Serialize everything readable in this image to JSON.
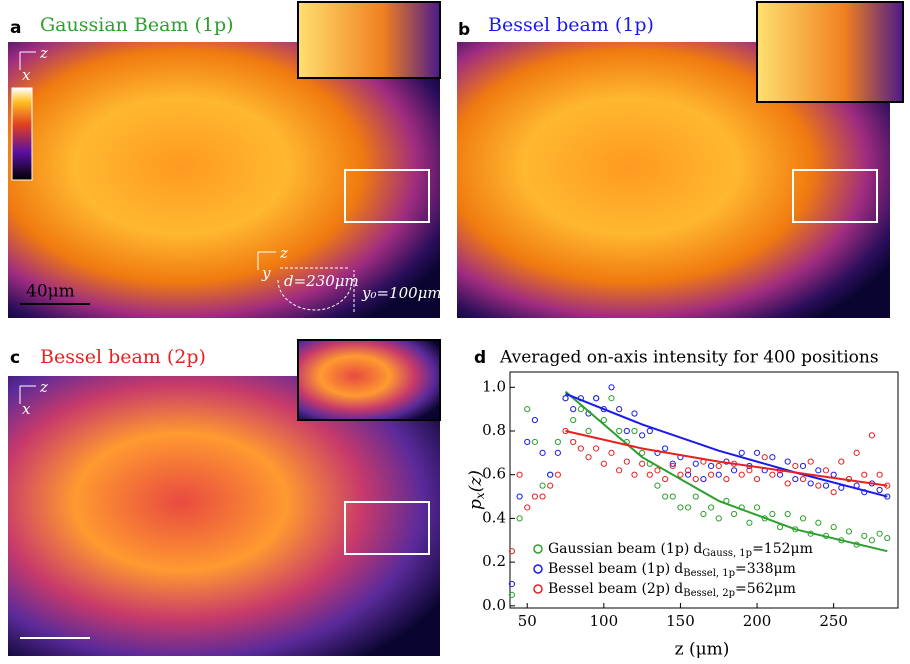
{
  "panels": [
    {
      "letter": "a",
      "title": "Gaussian Beam (1p)",
      "color": "#2ca02c",
      "annotations": [
        "z",
        "x",
        "40μm",
        "z",
        "y",
        "d=230μm",
        "y₀=100μm"
      ]
    },
    {
      "letter": "b",
      "title": "Bessel beam (1p)",
      "color": "#1a1aee"
    },
    {
      "letter": "c",
      "title": "Bessel beam (2p)",
      "color": "#e82020",
      "annotations": [
        "z",
        "x"
      ]
    }
  ],
  "chart_data": {
    "type": "scatter",
    "panel_label": "d",
    "title": "Averaged on-axis intensity for 400 positions",
    "xlabel": "z (μm)",
    "ylabel": {
      "base": "p",
      "sub": "x",
      "tail": "(z)"
    },
    "xlim": [
      38.75,
      292
    ],
    "xticks": [
      50,
      100,
      150,
      200,
      250
    ],
    "ylim": [
      -0.01,
      1.07
    ],
    "yticks": [
      {
        "value": 0,
        "label": "0.0"
      },
      0.2,
      0.4,
      0.6,
      0.8,
      {
        "value": 1,
        "label": "1.0"
      }
    ],
    "x": [
      40,
      45,
      50,
      55,
      60,
      65,
      70,
      75,
      80,
      85,
      90,
      95,
      100,
      105,
      110,
      115,
      120,
      125,
      130,
      135,
      140,
      145,
      150,
      155,
      160,
      165,
      170,
      175,
      180,
      185,
      190,
      195,
      200,
      205,
      210,
      215,
      220,
      225,
      230,
      235,
      240,
      245,
      250,
      255,
      260,
      265,
      270,
      275,
      280,
      285
    ],
    "series": [
      {
        "name": "Gaussian beam (1p)",
        "color": "#2ca02c",
        "fit_label": {
          "base": "d",
          "sub": "Gauss, 1p",
          "value": "=152μm"
        },
        "values": [
          0.05,
          0.4,
          0.9,
          0.75,
          0.55,
          0.6,
          0.75,
          0.95,
          0.85,
          0.9,
          0.8,
          0.95,
          0.85,
          0.95,
          0.8,
          0.75,
          0.8,
          0.7,
          0.65,
          0.55,
          0.5,
          0.5,
          0.45,
          0.45,
          0.5,
          0.42,
          0.45,
          0.4,
          0.48,
          0.42,
          0.45,
          0.38,
          0.45,
          0.4,
          0.42,
          0.36,
          0.42,
          0.35,
          0.4,
          0.33,
          0.38,
          0.32,
          0.36,
          0.3,
          0.34,
          0.28,
          0.32,
          0.3,
          0.33,
          0.31
        ],
        "fit": {
          "x": [
            75,
            125,
            175,
            225,
            285
          ],
          "values": [
            0.98,
            0.68,
            0.48,
            0.35,
            0.25
          ]
        }
      },
      {
        "name": "Bessel beam (1p)",
        "color": "#1a1aee",
        "fit_label": {
          "base": "d",
          "sub": "Bessel, 1p",
          "value": "=338μm"
        },
        "values": [
          0.1,
          0.5,
          0.75,
          0.85,
          0.7,
          0.6,
          0.7,
          0.95,
          0.9,
          0.95,
          0.88,
          0.95,
          0.9,
          1.0,
          0.9,
          0.8,
          0.88,
          0.78,
          0.8,
          0.7,
          0.72,
          0.65,
          0.68,
          0.6,
          0.65,
          0.58,
          0.64,
          0.6,
          0.66,
          0.62,
          0.7,
          0.64,
          0.7,
          0.62,
          0.68,
          0.6,
          0.66,
          0.58,
          0.64,
          0.56,
          0.62,
          0.55,
          0.6,
          0.54,
          0.58,
          0.55,
          0.52,
          0.56,
          0.53,
          0.5
        ],
        "fit": {
          "x": [
            75,
            125,
            175,
            225,
            285
          ],
          "values": [
            0.97,
            0.83,
            0.71,
            0.61,
            0.5
          ]
        }
      },
      {
        "name": "Bessel beam (2p)",
        "color": "#e82020",
        "fit_label": {
          "base": "d",
          "sub": "Bessel, 2p",
          "value": "=562μm"
        },
        "values": [
          0.25,
          0.6,
          0.45,
          0.5,
          0.5,
          0.55,
          0.6,
          0.8,
          0.75,
          0.72,
          0.68,
          0.72,
          0.65,
          0.7,
          0.62,
          0.66,
          0.6,
          0.65,
          0.6,
          0.62,
          0.58,
          0.64,
          0.6,
          0.62,
          0.58,
          0.66,
          0.6,
          0.64,
          0.58,
          0.65,
          0.6,
          0.62,
          0.58,
          0.68,
          0.6,
          0.62,
          0.56,
          0.64,
          0.58,
          0.66,
          0.55,
          0.62,
          0.52,
          0.66,
          0.58,
          0.7,
          0.6,
          0.78,
          0.6,
          0.55
        ],
        "fit": {
          "x": [
            75,
            125,
            175,
            225,
            285
          ],
          "values": [
            0.8,
            0.72,
            0.66,
            0.61,
            0.55
          ]
        }
      }
    ]
  }
}
